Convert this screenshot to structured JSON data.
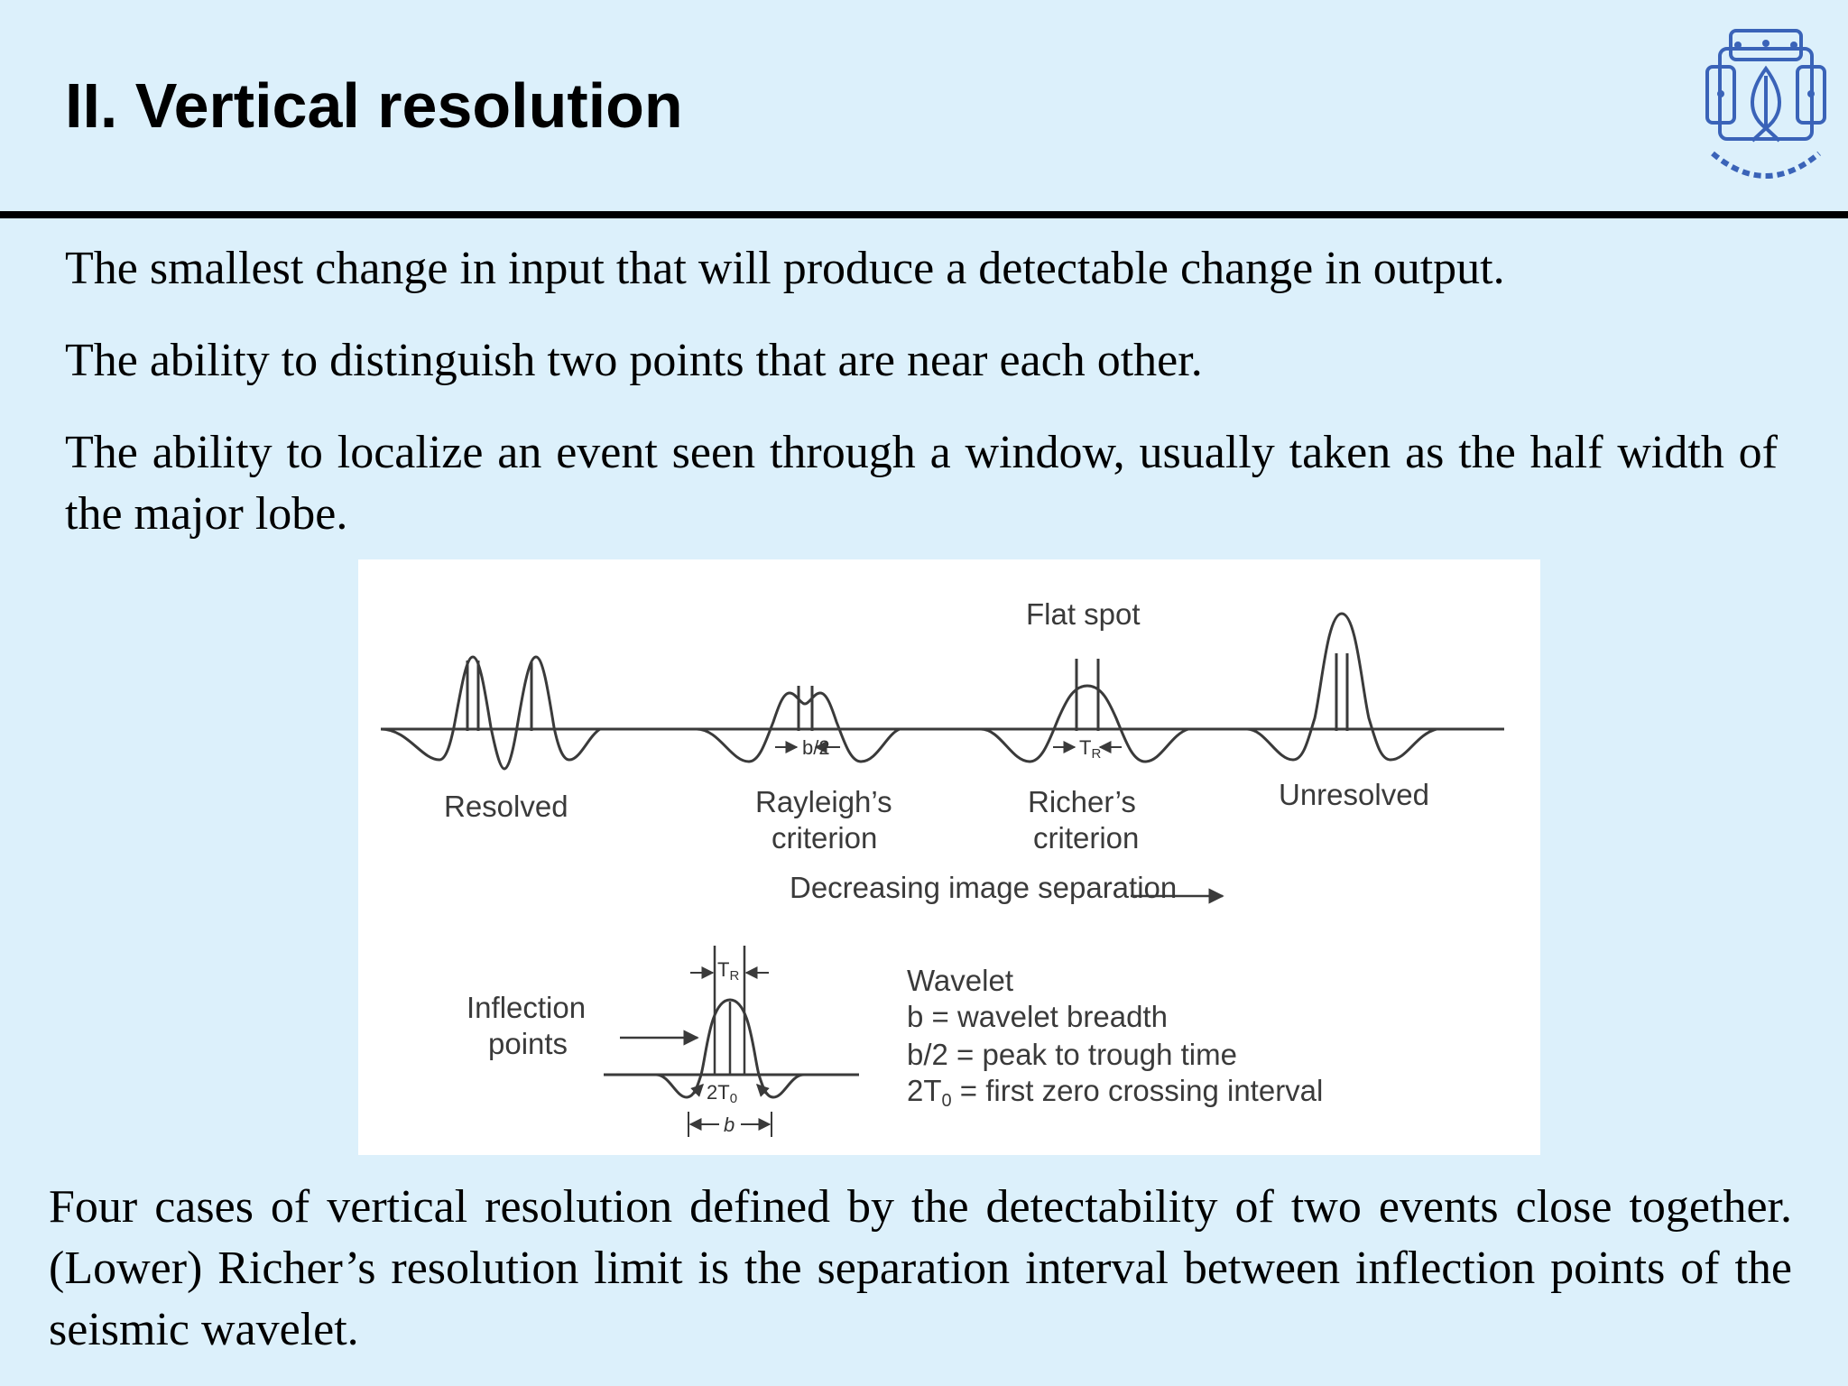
{
  "slide": {
    "title": "II. Vertical resolution",
    "paragraphs": [
      "The smallest change in input that will produce a detectable change in output.",
      "The ability to distinguish two points that are near each other.",
      "The ability to localize an event seen through a window, usually taken as the half width of the major lobe."
    ],
    "caption": "Four cases of vertical resolution defined by the detectability of two events close together. (Lower) Richer’s resolution limit is the separation interval between inflection points of the seismic wavelet."
  },
  "figure": {
    "flat_spot": "Flat spot",
    "b_half": "b/2",
    "t_r": "T",
    "t_r_sub": "R",
    "cases": {
      "resolved": "Resolved",
      "rayleigh_line1": "Rayleigh’s",
      "rayleigh_line2": "criterion",
      "richer_line1": "Richer’s",
      "richer_line2": "criterion",
      "unresolved": "Unresolved"
    },
    "decreasing": "Decreasing image separation",
    "inflection_line1": "Inflection",
    "inflection_line2": "points",
    "two_t0": "2T",
    "two_t0_sub": "0",
    "b": "b",
    "wavelet_title": "Wavelet",
    "legend_b": "b = wavelet breadth",
    "legend_bhalf": "b/2 = peak to trough time",
    "legend_2t0_prefix": "2T",
    "legend_2t0_sub": "0",
    "legend_2t0_rest": " = first zero crossing interval"
  },
  "colors": {
    "background": "#dcf0fb",
    "rule": "#000000",
    "figure_background": "#ffffff",
    "figure_ink": "#3a3a3a"
  },
  "logo": {
    "icon": "university-seal-icon"
  }
}
